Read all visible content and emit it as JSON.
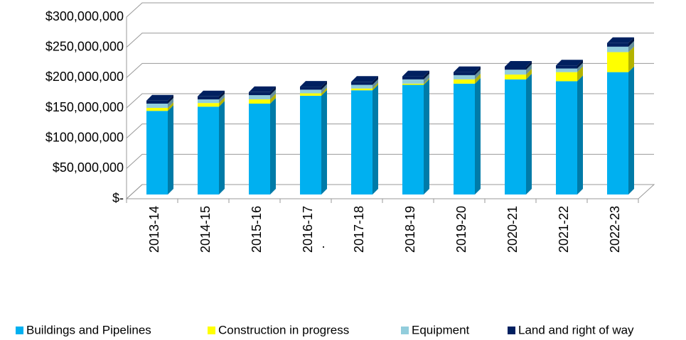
{
  "chart_data": {
    "type": "bar3d_stacked",
    "categories": [
      "2013-14",
      "2014-15",
      "2015-16",
      "2016-17",
      "2017-18",
      "2018-19",
      "2019-20",
      "2020-21",
      "2021-22",
      "2022-23"
    ],
    "series": [
      {
        "name": "Buildings and Pipelines",
        "color": "#00b0f0",
        "values": [
          138000000,
          145000000,
          150000000,
          163000000,
          172000000,
          181000000,
          183000000,
          190000000,
          187000000,
          202000000
        ]
      },
      {
        "name": "Construction in progress",
        "color": "#ffff00",
        "values": [
          5000000,
          6000000,
          7000000,
          4000000,
          3000000,
          2000000,
          7000000,
          8000000,
          15000000,
          33000000
        ]
      },
      {
        "name": "Equipment",
        "color": "#92cddc",
        "values": [
          7000000,
          6000000,
          7000000,
          6000000,
          6000000,
          7000000,
          7000000,
          8000000,
          6000000,
          9000000
        ]
      },
      {
        "name": "Land and right of way",
        "color": "#002060",
        "values": [
          5000000,
          5000000,
          5000000,
          5000000,
          5000000,
          5000000,
          5000000,
          5000000,
          5000000,
          6000000
        ]
      }
    ],
    "ylim": [
      0,
      300000000
    ],
    "yticks": [
      {
        "value": 0,
        "label": "$-"
      },
      {
        "value": 50000000,
        "label": "$50,000,000"
      },
      {
        "value": 100000000,
        "label": "$100,000,000"
      },
      {
        "value": 150000000,
        "label": "$150,000,000"
      },
      {
        "value": 200000000,
        "label": "$200,000,000"
      },
      {
        "value": 250000000,
        "label": "$250,000,000"
      },
      {
        "value": 300000000,
        "label": "$300,000,000"
      }
    ],
    "annotation": ".",
    "grid": true,
    "legend": "bottom"
  }
}
